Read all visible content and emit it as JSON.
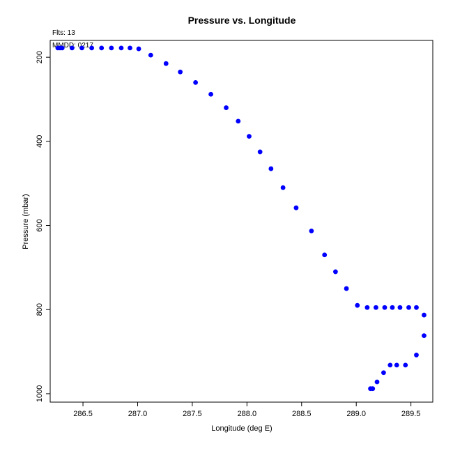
{
  "chart_data": {
    "type": "scatter",
    "title": "Pressure vs. Longitude",
    "xlabel": "Longitude (deg E)",
    "ylabel": "Pressure (mbar)",
    "annotations": [
      "Flts: 13",
      "MMDD: 0217"
    ],
    "xlim": [
      286.2,
      289.7
    ],
    "ylim": [
      1020,
      160
    ],
    "y_inverted": true,
    "xticks": [
      "286.5",
      "287.0",
      "287.5",
      "288.0",
      "288.5",
      "289.0",
      "289.5"
    ],
    "yticks": [
      "200",
      "400",
      "600",
      "800",
      "1000"
    ],
    "grid": false,
    "marker_color": "#0000ff",
    "series": [
      {
        "x": [
          286.27,
          286.29,
          286.31,
          286.4,
          286.49,
          286.58,
          286.67,
          286.76,
          286.85,
          286.93,
          287.01,
          287.12,
          287.26,
          287.39,
          287.53,
          287.67,
          287.81,
          287.92,
          288.02,
          288.12,
          288.22,
          288.33,
          288.45,
          288.59,
          288.71,
          288.81,
          288.91,
          289.01,
          289.1,
          289.18,
          289.26,
          289.33,
          289.4,
          289.48,
          289.55,
          289.62,
          289.62,
          289.55,
          289.45,
          289.37,
          289.31,
          289.25,
          289.19,
          289.15,
          289.13
        ],
        "y": [
          178,
          178,
          178,
          178,
          178,
          178,
          178,
          178,
          178,
          178,
          180,
          195,
          215,
          235,
          260,
          288,
          320,
          352,
          388,
          425,
          465,
          510,
          558,
          613,
          670,
          710,
          750,
          790,
          795,
          795,
          795,
          795,
          795,
          795,
          795,
          813,
          862,
          908,
          932,
          932,
          932,
          950,
          972,
          988,
          988
        ]
      }
    ]
  }
}
